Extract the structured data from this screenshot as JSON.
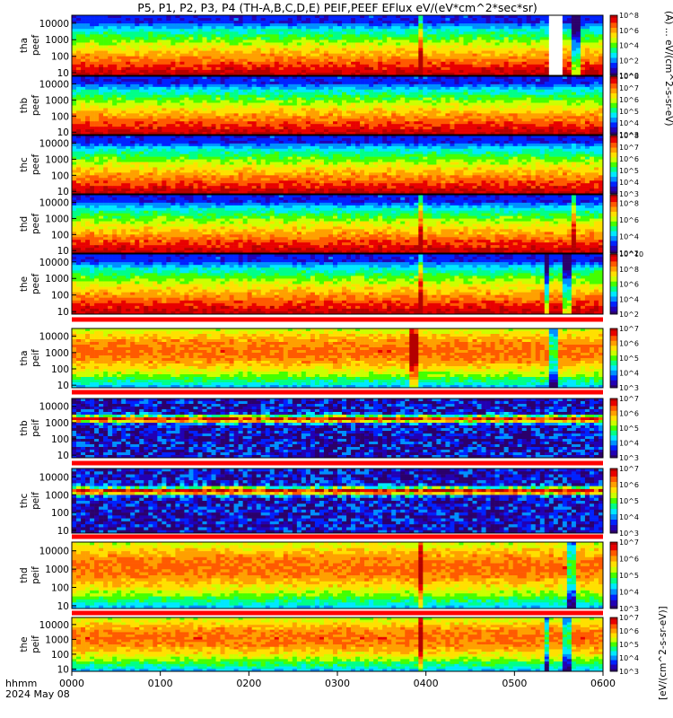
{
  "title": "P5, P1, P2, P3, P4 (TH-A,B,C,D,E) PEIF,PEEF EFlux eV/(eV*cm^2*sec*sr)",
  "colors": {
    "colormap": [
      "#2b006b",
      "#2200b4",
      "#0022ff",
      "#0090ff",
      "#00e8ff",
      "#00ff88",
      "#44ff00",
      "#ccff00",
      "#ffe000",
      "#ffa000",
      "#ff5a00",
      "#e80000",
      "#b40000"
    ],
    "separator_red": "#ff0000",
    "missing": "#ffffff"
  },
  "colorbar_labels": {
    "electron": "(A) ... eV/(cm^2-s-sr-eV)",
    "ion": "[eV/(cm^2-s-sr-eV)]"
  },
  "chart_data": {
    "type": "heatmap",
    "x_label": "hhmm",
    "date_label": "2024 May 08",
    "x_ticks": [
      "0000",
      "0100",
      "0200",
      "0300",
      "0400",
      "0500",
      "0600"
    ],
    "y_ticks": [
      "10",
      "100",
      "1000",
      "10000"
    ],
    "y_scale": "log",
    "panels": [
      {
        "id": "tha-peef",
        "probe": "tha",
        "species": "peef",
        "ylabel_1": "tha",
        "ylabel_2": "peef",
        "y_range_eV": [
          7,
          30000
        ],
        "cb_ticks": [
          {
            "e": 0,
            "label": "10^0"
          },
          {
            "e": 2,
            "label": "10^2"
          },
          {
            "e": 4,
            "label": "10^4"
          },
          {
            "e": 6,
            "label": "10^6"
          },
          {
            "e": 8,
            "label": "10^8"
          }
        ],
        "cb_range": [
          0,
          8
        ],
        "profile": "el",
        "gaps": [
          [
            0.895,
            0.92
          ]
        ],
        "spikes": [
          0.655
        ],
        "eclipses": [
          0.945
        ]
      },
      {
        "id": "thb-peef",
        "probe": "thb",
        "species": "peef",
        "ylabel_1": "thb",
        "ylabel_2": "peef",
        "y_range_eV": [
          7,
          30000
        ],
        "cb_ticks": [
          {
            "e": 3,
            "label": "10^3"
          },
          {
            "e": 4,
            "label": "10^4"
          },
          {
            "e": 5,
            "label": "10^5"
          },
          {
            "e": 6,
            "label": "10^6"
          },
          {
            "e": 7,
            "label": "10^7"
          },
          {
            "e": 8,
            "label": "10^8"
          }
        ],
        "cb_range": [
          3,
          8
        ],
        "profile": "el",
        "gaps": [],
        "spikes": [],
        "eclipses": []
      },
      {
        "id": "thc-peef",
        "probe": "thc",
        "species": "peef",
        "ylabel_1": "thc",
        "ylabel_2": "peef",
        "y_range_eV": [
          7,
          30000
        ],
        "cb_ticks": [
          {
            "e": 3,
            "label": "10^3"
          },
          {
            "e": 4,
            "label": "10^4"
          },
          {
            "e": 5,
            "label": "10^5"
          },
          {
            "e": 6,
            "label": "10^6"
          },
          {
            "e": 7,
            "label": "10^7"
          },
          {
            "e": 8,
            "label": "10^8"
          }
        ],
        "cb_range": [
          3,
          8
        ],
        "profile": "el",
        "gaps": [],
        "spikes": [],
        "eclipses": []
      },
      {
        "id": "thd-peef",
        "probe": "thd",
        "species": "peef",
        "ylabel_1": "thd",
        "ylabel_2": "peef",
        "y_range_eV": [
          7,
          30000
        ],
        "cb_ticks": [
          {
            "e": 2,
            "label": "10^2"
          },
          {
            "e": 4,
            "label": "10^4"
          },
          {
            "e": 6,
            "label": "10^6"
          },
          {
            "e": 8,
            "label": "10^8"
          }
        ],
        "cb_range": [
          2,
          9
        ],
        "profile": "el",
        "gaps": [],
        "spikes": [
          0.655,
          0.94
        ],
        "eclipses": []
      },
      {
        "id": "the-peef",
        "probe": "the",
        "species": "peef",
        "ylabel_1": "the",
        "ylabel_2": "peef",
        "y_range_eV": [
          7,
          30000
        ],
        "cb_ticks": [
          {
            "e": 2,
            "label": "10^2"
          },
          {
            "e": 4,
            "label": "10^4"
          },
          {
            "e": 6,
            "label": "10^6"
          },
          {
            "e": 8,
            "label": "10^8"
          },
          {
            "e": 10,
            "label": "10^10"
          }
        ],
        "cb_range": [
          2,
          10
        ],
        "profile": "el",
        "gaps": [],
        "spikes": [
          0.655
        ],
        "eclipses": [
          0.89,
          0.93
        ]
      },
      {
        "id": "tha-peif",
        "probe": "tha",
        "species": "peif",
        "ylabel_1": "tha",
        "ylabel_2": "peif",
        "y_range_eV": [
          7,
          30000
        ],
        "cb_ticks": [
          {
            "e": 3,
            "label": "10^3"
          },
          {
            "e": 4,
            "label": "10^4"
          },
          {
            "e": 5,
            "label": "10^5"
          },
          {
            "e": 6,
            "label": "10^6"
          },
          {
            "e": 7,
            "label": "10^7"
          }
        ],
        "cb_range": [
          3,
          7
        ],
        "profile": "ion",
        "gaps": [],
        "spikes": [
          0.64
        ],
        "eclipses": [
          0.9
        ]
      },
      {
        "id": "thb-peif",
        "probe": "thb",
        "species": "peif",
        "ylabel_1": "thb",
        "ylabel_2": "peif",
        "y_range_eV": [
          7,
          30000
        ],
        "cb_ticks": [
          {
            "e": 3,
            "label": "10^3"
          },
          {
            "e": 4,
            "label": "10^4"
          },
          {
            "e": 5,
            "label": "10^5"
          },
          {
            "e": 6,
            "label": "10^6"
          },
          {
            "e": 7,
            "label": "10^7"
          }
        ],
        "cb_range": [
          3,
          7
        ],
        "profile": "sw",
        "gaps": [],
        "spikes": [],
        "eclipses": []
      },
      {
        "id": "thc-peif",
        "probe": "thc",
        "species": "peif",
        "ylabel_1": "thc",
        "ylabel_2": "peif",
        "y_range_eV": [
          7,
          30000
        ],
        "cb_ticks": [
          {
            "e": 3,
            "label": "10^3"
          },
          {
            "e": 4,
            "label": "10^4"
          },
          {
            "e": 5,
            "label": "10^5"
          },
          {
            "e": 6,
            "label": "10^6"
          },
          {
            "e": 7,
            "label": "10^7"
          }
        ],
        "cb_range": [
          3,
          7
        ],
        "profile": "sw",
        "gaps": [],
        "spikes": [],
        "eclipses": []
      },
      {
        "id": "thd-peif",
        "probe": "thd",
        "species": "peif",
        "ylabel_1": "thd",
        "ylabel_2": "peif",
        "y_range_eV": [
          7,
          30000
        ],
        "cb_ticks": [
          {
            "e": 3,
            "label": "10^3"
          },
          {
            "e": 4,
            "label": "10^4"
          },
          {
            "e": 5,
            "label": "10^5"
          },
          {
            "e": 6,
            "label": "10^6"
          },
          {
            "e": 7,
            "label": "10^7"
          }
        ],
        "cb_range": [
          3,
          7
        ],
        "profile": "ion",
        "gaps": [],
        "spikes": [
          0.655
        ],
        "eclipses": [
          0.94
        ]
      },
      {
        "id": "the-peif",
        "probe": "the",
        "species": "peif",
        "ylabel_1": "the",
        "ylabel_2": "peif",
        "y_range_eV": [
          7,
          30000
        ],
        "cb_ticks": [
          {
            "e": 3,
            "label": "10^3"
          },
          {
            "e": 4,
            "label": "10^4"
          },
          {
            "e": 5,
            "label": "10^5"
          },
          {
            "e": 6,
            "label": "10^6"
          },
          {
            "e": 7,
            "label": "10^7"
          }
        ],
        "cb_range": [
          3,
          7
        ],
        "profile": "ion",
        "gaps": [],
        "spikes": [
          0.655
        ],
        "eclipses": [
          0.89,
          0.93
        ]
      }
    ]
  }
}
